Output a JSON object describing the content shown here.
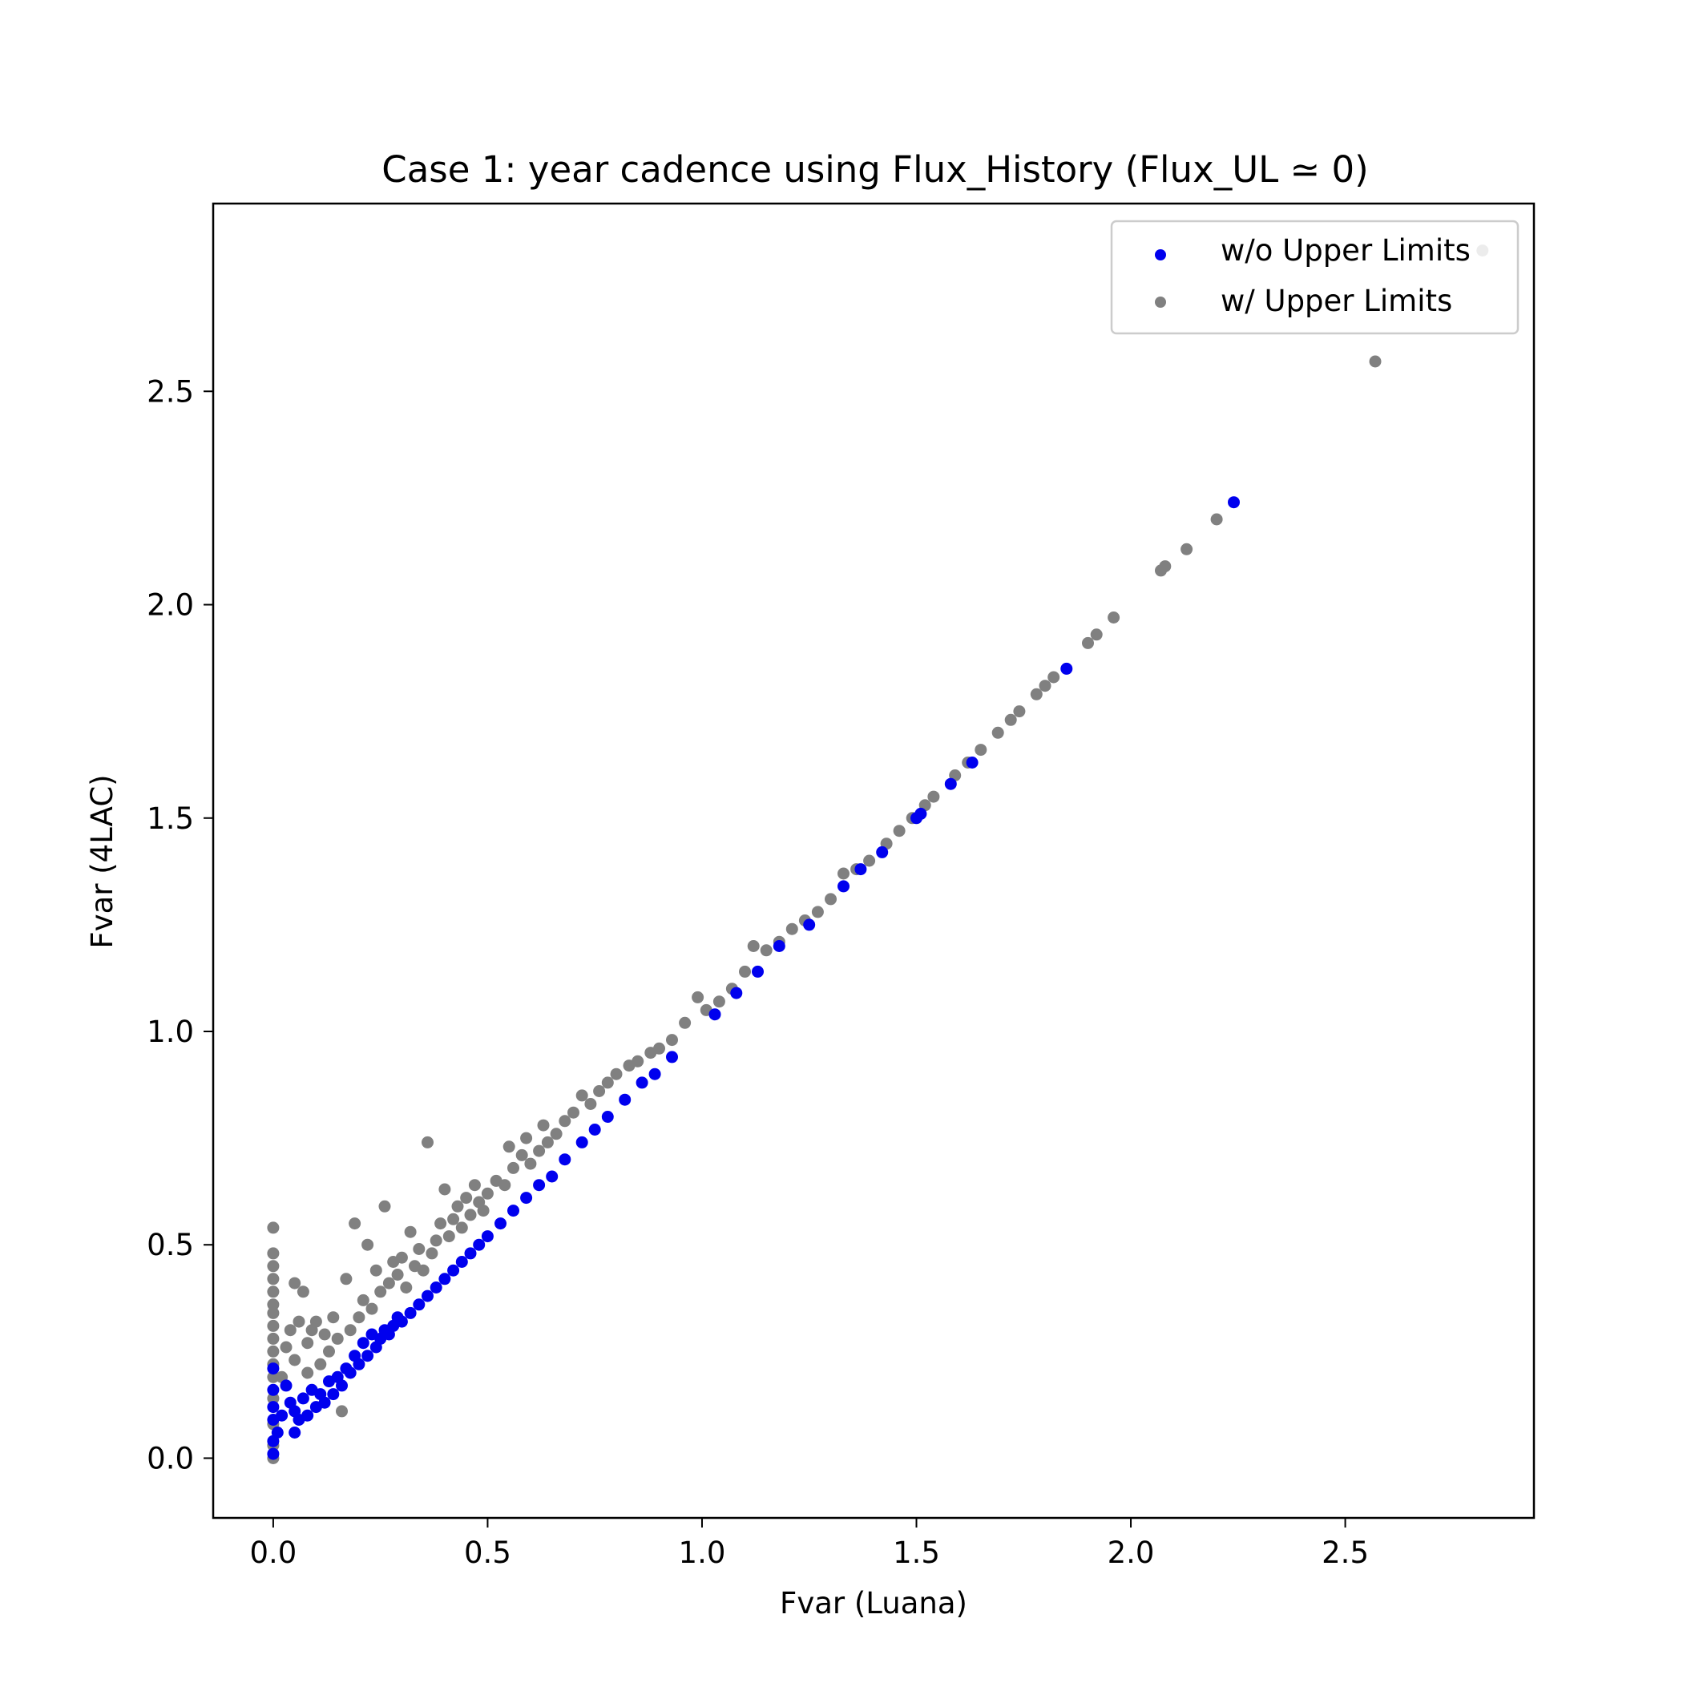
{
  "chart_data": {
    "type": "scatter",
    "title": "Case 1: year cadence using Flux_History (Flux_UL ≃ 0)",
    "xlabel": "Fvar (Luana)",
    "ylabel": "Fvar (4LAC)",
    "xlim": [
      -0.14,
      2.94
    ],
    "ylim": [
      -0.14,
      2.94
    ],
    "xticks": [
      "0.0",
      "0.5",
      "1.0",
      "1.5",
      "2.0",
      "2.5"
    ],
    "yticks": [
      "0.0",
      "0.5",
      "1.0",
      "1.5",
      "2.0",
      "2.5"
    ],
    "legend_position": "top-right",
    "grid": false,
    "series": [
      {
        "name": "w/ Upper Limits",
        "color": "#808080",
        "points": [
          [
            0.0,
            0.0
          ],
          [
            0.0,
            0.03
          ],
          [
            0.0,
            0.08
          ],
          [
            0.0,
            0.14
          ],
          [
            0.0,
            0.19
          ],
          [
            0.0,
            0.22
          ],
          [
            0.0,
            0.25
          ],
          [
            0.0,
            0.28
          ],
          [
            0.0,
            0.31
          ],
          [
            0.0,
            0.34
          ],
          [
            0.0,
            0.36
          ],
          [
            0.0,
            0.39
          ],
          [
            0.0,
            0.42
          ],
          [
            0.0,
            0.45
          ],
          [
            0.0,
            0.48
          ],
          [
            0.0,
            0.54
          ],
          [
            0.02,
            0.19
          ],
          [
            0.03,
            0.26
          ],
          [
            0.04,
            0.3
          ],
          [
            0.05,
            0.41
          ],
          [
            0.05,
            0.23
          ],
          [
            0.06,
            0.32
          ],
          [
            0.07,
            0.39
          ],
          [
            0.08,
            0.2
          ],
          [
            0.08,
            0.27
          ],
          [
            0.09,
            0.3
          ],
          [
            0.1,
            0.32
          ],
          [
            0.11,
            0.22
          ],
          [
            0.12,
            0.29
          ],
          [
            0.13,
            0.25
          ],
          [
            0.14,
            0.33
          ],
          [
            0.15,
            0.28
          ],
          [
            0.16,
            0.11
          ],
          [
            0.17,
            0.42
          ],
          [
            0.18,
            0.3
          ],
          [
            0.19,
            0.55
          ],
          [
            0.2,
            0.33
          ],
          [
            0.21,
            0.37
          ],
          [
            0.22,
            0.5
          ],
          [
            0.23,
            0.35
          ],
          [
            0.24,
            0.44
          ],
          [
            0.25,
            0.39
          ],
          [
            0.26,
            0.59
          ],
          [
            0.27,
            0.41
          ],
          [
            0.28,
            0.46
          ],
          [
            0.29,
            0.43
          ],
          [
            0.3,
            0.47
          ],
          [
            0.31,
            0.4
          ],
          [
            0.32,
            0.53
          ],
          [
            0.33,
            0.45
          ],
          [
            0.34,
            0.49
          ],
          [
            0.35,
            0.44
          ],
          [
            0.36,
            0.74
          ],
          [
            0.37,
            0.48
          ],
          [
            0.38,
            0.51
          ],
          [
            0.39,
            0.55
          ],
          [
            0.4,
            0.63
          ],
          [
            0.41,
            0.52
          ],
          [
            0.42,
            0.56
          ],
          [
            0.43,
            0.59
          ],
          [
            0.44,
            0.54
          ],
          [
            0.45,
            0.61
          ],
          [
            0.46,
            0.57
          ],
          [
            0.47,
            0.64
          ],
          [
            0.48,
            0.6
          ],
          [
            0.49,
            0.58
          ],
          [
            0.5,
            0.62
          ],
          [
            0.52,
            0.65
          ],
          [
            0.54,
            0.64
          ],
          [
            0.55,
            0.73
          ],
          [
            0.56,
            0.68
          ],
          [
            0.58,
            0.71
          ],
          [
            0.59,
            0.75
          ],
          [
            0.6,
            0.69
          ],
          [
            0.62,
            0.72
          ],
          [
            0.63,
            0.78
          ],
          [
            0.64,
            0.74
          ],
          [
            0.66,
            0.76
          ],
          [
            0.68,
            0.79
          ],
          [
            0.7,
            0.81
          ],
          [
            0.72,
            0.85
          ],
          [
            0.74,
            0.83
          ],
          [
            0.76,
            0.86
          ],
          [
            0.78,
            0.88
          ],
          [
            0.8,
            0.9
          ],
          [
            0.83,
            0.92
          ],
          [
            0.85,
            0.93
          ],
          [
            0.88,
            0.95
          ],
          [
            0.9,
            0.96
          ],
          [
            0.93,
            0.98
          ],
          [
            0.96,
            1.02
          ],
          [
            0.99,
            1.08
          ],
          [
            1.01,
            1.05
          ],
          [
            1.04,
            1.07
          ],
          [
            1.07,
            1.1
          ],
          [
            1.1,
            1.14
          ],
          [
            1.12,
            1.2
          ],
          [
            1.15,
            1.19
          ],
          [
            1.18,
            1.21
          ],
          [
            1.21,
            1.24
          ],
          [
            1.24,
            1.26
          ],
          [
            1.27,
            1.28
          ],
          [
            1.3,
            1.31
          ],
          [
            1.33,
            1.37
          ],
          [
            1.36,
            1.38
          ],
          [
            1.39,
            1.4
          ],
          [
            1.43,
            1.44
          ],
          [
            1.46,
            1.47
          ],
          [
            1.49,
            1.5
          ],
          [
            1.52,
            1.53
          ],
          [
            1.54,
            1.55
          ],
          [
            1.59,
            1.6
          ],
          [
            1.62,
            1.63
          ],
          [
            1.65,
            1.66
          ],
          [
            1.69,
            1.7
          ],
          [
            1.72,
            1.73
          ],
          [
            1.74,
            1.75
          ],
          [
            1.78,
            1.79
          ],
          [
            1.8,
            1.81
          ],
          [
            1.82,
            1.83
          ],
          [
            1.9,
            1.91
          ],
          [
            1.92,
            1.93
          ],
          [
            1.96,
            1.97
          ],
          [
            2.07,
            2.08
          ],
          [
            2.08,
            2.09
          ],
          [
            2.13,
            2.13
          ],
          [
            2.2,
            2.2
          ],
          [
            2.57,
            2.57
          ],
          [
            2.82,
            2.83
          ]
        ]
      },
      {
        "name": "w/o Upper Limits",
        "color": "#0000ee",
        "points": [
          [
            0.0,
            0.01
          ],
          [
            0.0,
            0.04
          ],
          [
            0.0,
            0.09
          ],
          [
            0.0,
            0.12
          ],
          [
            0.0,
            0.16
          ],
          [
            0.0,
            0.21
          ],
          [
            0.01,
            0.06
          ],
          [
            0.02,
            0.1
          ],
          [
            0.03,
            0.17
          ],
          [
            0.04,
            0.13
          ],
          [
            0.05,
            0.06
          ],
          [
            0.05,
            0.11
          ],
          [
            0.06,
            0.09
          ],
          [
            0.07,
            0.14
          ],
          [
            0.08,
            0.1
          ],
          [
            0.09,
            0.16
          ],
          [
            0.1,
            0.12
          ],
          [
            0.11,
            0.15
          ],
          [
            0.12,
            0.13
          ],
          [
            0.13,
            0.18
          ],
          [
            0.14,
            0.15
          ],
          [
            0.15,
            0.19
          ],
          [
            0.16,
            0.17
          ],
          [
            0.17,
            0.21
          ],
          [
            0.18,
            0.2
          ],
          [
            0.19,
            0.24
          ],
          [
            0.2,
            0.22
          ],
          [
            0.21,
            0.27
          ],
          [
            0.22,
            0.24
          ],
          [
            0.23,
            0.29
          ],
          [
            0.24,
            0.26
          ],
          [
            0.25,
            0.28
          ],
          [
            0.26,
            0.3
          ],
          [
            0.27,
            0.29
          ],
          [
            0.28,
            0.31
          ],
          [
            0.29,
            0.33
          ],
          [
            0.3,
            0.32
          ],
          [
            0.32,
            0.34
          ],
          [
            0.34,
            0.36
          ],
          [
            0.36,
            0.38
          ],
          [
            0.38,
            0.4
          ],
          [
            0.4,
            0.42
          ],
          [
            0.42,
            0.44
          ],
          [
            0.44,
            0.46
          ],
          [
            0.46,
            0.48
          ],
          [
            0.48,
            0.5
          ],
          [
            0.5,
            0.52
          ],
          [
            0.53,
            0.55
          ],
          [
            0.56,
            0.58
          ],
          [
            0.59,
            0.61
          ],
          [
            0.62,
            0.64
          ],
          [
            0.65,
            0.66
          ],
          [
            0.68,
            0.7
          ],
          [
            0.72,
            0.74
          ],
          [
            0.75,
            0.77
          ],
          [
            0.78,
            0.8
          ],
          [
            0.82,
            0.84
          ],
          [
            0.86,
            0.88
          ],
          [
            0.89,
            0.9
          ],
          [
            0.93,
            0.94
          ],
          [
            1.03,
            1.04
          ],
          [
            1.08,
            1.09
          ],
          [
            1.13,
            1.14
          ],
          [
            1.18,
            1.2
          ],
          [
            1.25,
            1.25
          ],
          [
            1.33,
            1.34
          ],
          [
            1.37,
            1.38
          ],
          [
            1.42,
            1.42
          ],
          [
            1.5,
            1.5
          ],
          [
            1.51,
            1.51
          ],
          [
            1.58,
            1.58
          ],
          [
            1.63,
            1.63
          ],
          [
            1.85,
            1.85
          ],
          [
            2.24,
            2.24
          ]
        ]
      }
    ]
  }
}
